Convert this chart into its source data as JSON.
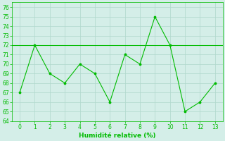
{
  "x": [
    0,
    1,
    2,
    3,
    4,
    5,
    6,
    7,
    8,
    9,
    10,
    11,
    12,
    13
  ],
  "y": [
    67,
    72,
    69,
    68,
    70,
    69,
    66,
    71,
    70,
    75,
    72,
    65,
    66,
    68
  ],
  "y_horizontal": 72,
  "xlim": [
    -0.5,
    13.5
  ],
  "ylim": [
    64,
    76.5
  ],
  "yticks": [
    64,
    65,
    66,
    67,
    68,
    69,
    70,
    71,
    72,
    73,
    74,
    75,
    76
  ],
  "xticks": [
    0,
    1,
    2,
    3,
    4,
    5,
    6,
    7,
    8,
    9,
    10,
    11,
    12,
    13
  ],
  "xlabel": "Humidité relative (%)",
  "line_color": "#00bb00",
  "bg_color": "#d4eee8",
  "grid_color": "#b0d8cc",
  "label_fontsize": 6.5,
  "tick_fontsize": 5.5
}
